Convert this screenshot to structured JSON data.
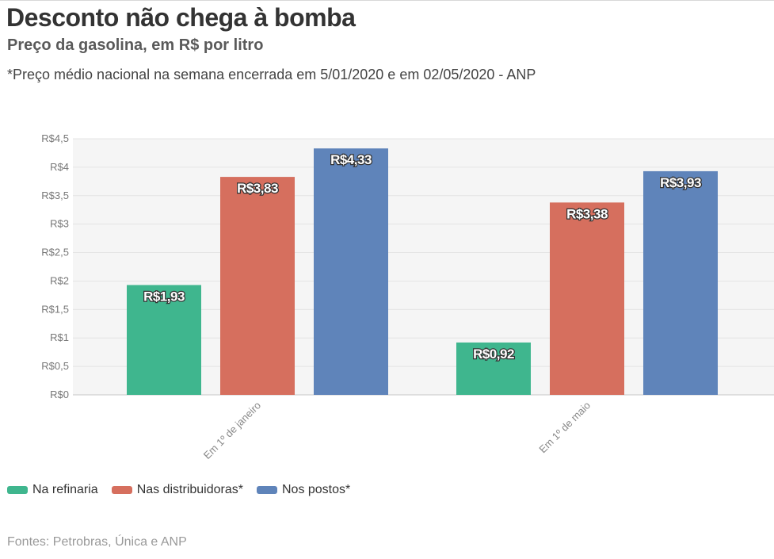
{
  "header": {
    "title": "Desconto não chega à bomba",
    "subtitle": "Preço da gasolina, em R$ por litro",
    "note": "*Preço médio nacional na semana encerrada em 5/01/2020 e em 02/05/2020 - ANP"
  },
  "chart_data": {
    "type": "bar",
    "categories": [
      "Em 1º de janeiro",
      "Em 1º de maio"
    ],
    "series": [
      {
        "name": "Na refinaria",
        "values": [
          1.93,
          0.92
        ],
        "labels": [
          "R$1,93",
          "R$0,92"
        ],
        "color": "#3fb68e"
      },
      {
        "name": "Nas distribuidoras*",
        "values": [
          3.83,
          3.38
        ],
        "labels": [
          "R$3,83",
          "R$3,38"
        ],
        "color": "#d66f5e"
      },
      {
        "name": "Nos postos*",
        "values": [
          4.33,
          3.93
        ],
        "labels": [
          "R$4,33",
          "R$3,93"
        ],
        "color": "#5f84ba"
      }
    ],
    "ylim": [
      0,
      4.5
    ],
    "yticks": [
      0,
      0.5,
      1,
      1.5,
      2,
      2.5,
      3,
      3.5,
      4,
      4.5
    ],
    "ytick_labels": [
      "R$0",
      "R$0,5",
      "R$1",
      "R$1,5",
      "R$2",
      "R$2,5",
      "R$3",
      "R$3,5",
      "R$4",
      "R$4,5"
    ],
    "xlabel": "",
    "ylabel": "",
    "grid": true,
    "legend": "bottom-left"
  },
  "legend": {
    "items": [
      {
        "label": "Na refinaria",
        "color": "#3fb68e"
      },
      {
        "label": "Nas distribuidoras*",
        "color": "#d66f5e"
      },
      {
        "label": "Nos postos*",
        "color": "#5f84ba"
      }
    ]
  },
  "footer": {
    "source": "Fontes: Petrobras, Única e ANP"
  }
}
